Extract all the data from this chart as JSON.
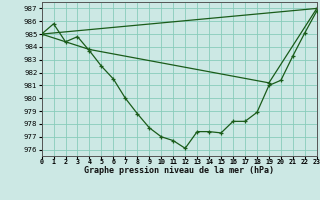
{
  "title": "Graphe pression niveau de la mer (hPa)",
  "bg_color": "#cce8e4",
  "grid_color": "#88ccbb",
  "line_color": "#1a5c1a",
  "xlim": [
    0,
    23
  ],
  "ylim": [
    975.5,
    987.5
  ],
  "yticks": [
    976,
    977,
    978,
    979,
    980,
    981,
    982,
    983,
    984,
    985,
    986,
    987
  ],
  "xtick_labels": [
    "0",
    "1",
    "2",
    "3",
    "4",
    "5",
    "6",
    "7",
    "8",
    "9",
    "10",
    "11",
    "12",
    "13",
    "14",
    "15",
    "16",
    "17",
    "18",
    "19",
    "20",
    "21",
    "22",
    "23"
  ],
  "series_main_x": [
    0,
    1,
    2,
    3,
    4,
    5,
    6,
    7,
    8,
    9,
    10,
    11,
    12,
    13,
    14,
    15,
    16,
    17,
    18,
    19,
    20,
    21,
    22,
    23
  ],
  "series_main_y": [
    985.0,
    985.8,
    984.4,
    984.8,
    983.7,
    982.5,
    981.5,
    980.0,
    978.8,
    977.7,
    977.0,
    976.7,
    976.1,
    977.4,
    977.4,
    977.3,
    978.2,
    978.2,
    978.9,
    981.0,
    981.4,
    983.3,
    985.1,
    986.8
  ],
  "trend1_x": [
    0,
    23
  ],
  "trend1_y": [
    985.0,
    987.0
  ],
  "trend2_x": [
    0,
    4,
    19,
    23
  ],
  "trend2_y": [
    985.0,
    983.8,
    981.2,
    987.0
  ]
}
